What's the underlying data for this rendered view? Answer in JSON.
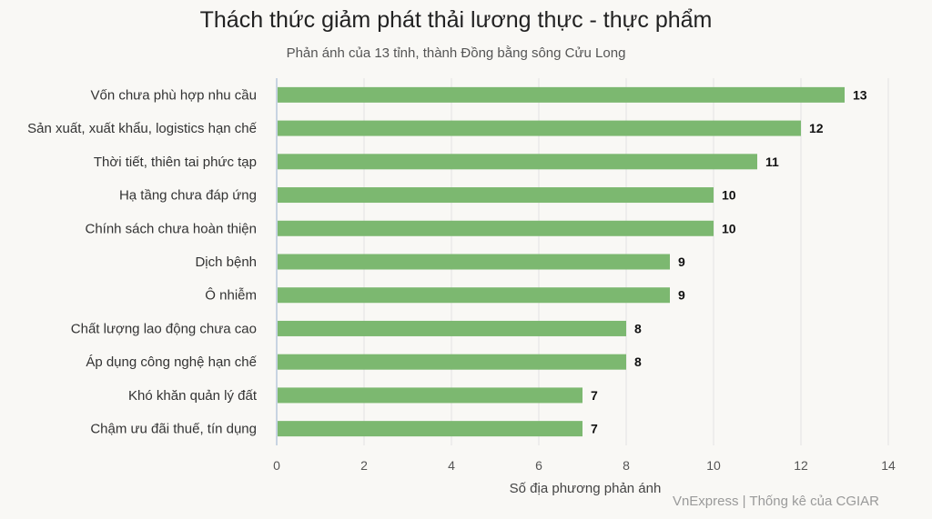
{
  "title": "Thách thức giảm phát thải lương thực - thực phẩm",
  "subtitle": "Phản ánh của 13 tỉnh, thành Đồng bằng sông Cửu Long",
  "source": "VnExpress | Thống kê của CGIAR",
  "colors": {
    "bar": "#7cb870",
    "grid": "#e2e2e2",
    "axis": "#b8c8dc",
    "label": "#333333",
    "value": "#111111"
  },
  "chart_data": {
    "type": "bar",
    "orientation": "horizontal",
    "categories": [
      "Vốn chưa phù hợp nhu cầu",
      "Sản xuất, xuất khẩu, logistics hạn chế",
      "Thời tiết, thiên tai phức tạp",
      "Hạ tầng chưa đáp ứng",
      "Chính sách chưa hoàn thiện",
      "Dịch bệnh",
      "Ô nhiễm",
      "Chất lượng lao động chưa cao",
      "Áp dụng công nghệ hạn chế",
      "Khó khăn quản lý đất",
      "Chậm ưu đãi thuế, tín dụng"
    ],
    "values": [
      13,
      12,
      11,
      10,
      10,
      9,
      9,
      8,
      8,
      7,
      7
    ],
    "xlabel": "Số địa phương phản ánh",
    "ylabel": "",
    "xlim": [
      0,
      14
    ],
    "xticks": [
      0,
      2,
      4,
      6,
      8,
      10,
      12,
      14
    ],
    "grid": true,
    "data_labels": true
  }
}
